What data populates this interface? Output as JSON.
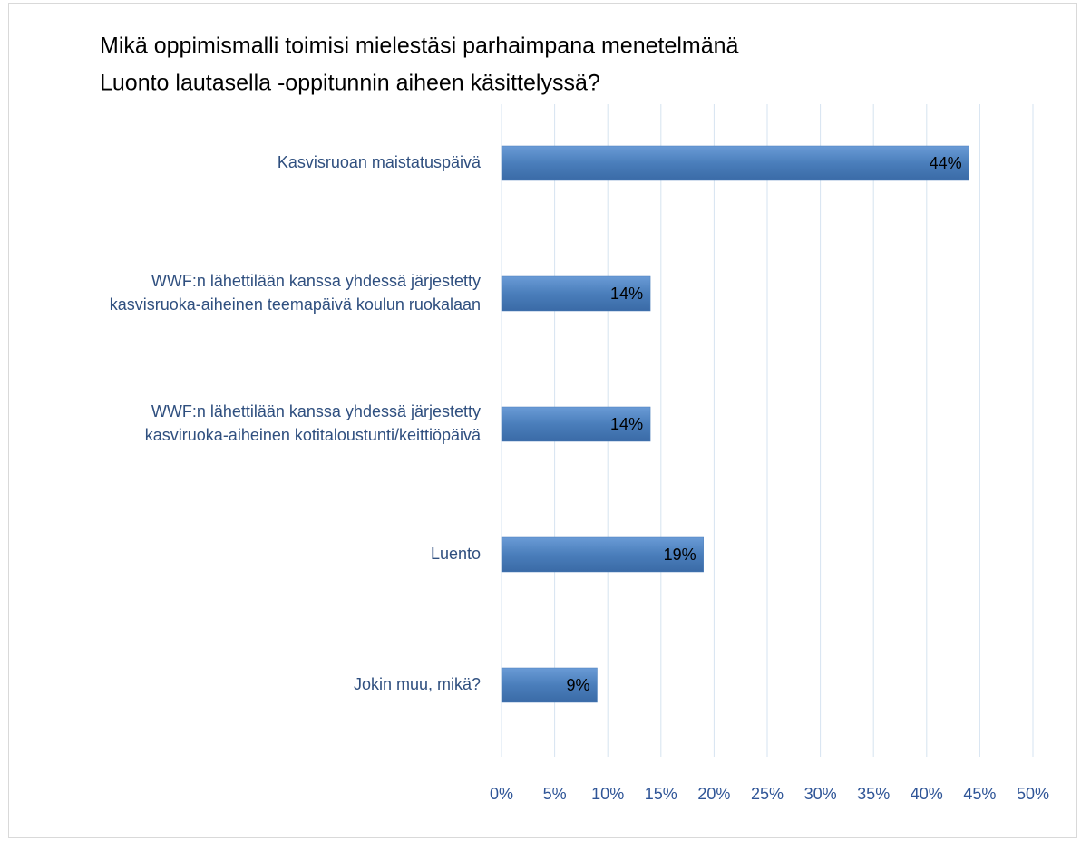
{
  "chart_data": {
    "type": "hbar",
    "title": [
      "Mikä oppimismalli toimisi mielestäsi parhaimpana menetelmänä",
      "Luonto lautasella -oppitunnin aiheen käsittelyssä?"
    ],
    "categories": [
      "Kasvisruoan maistatuspäivä",
      "WWF:n lähettilään kanssa yhdessä järjestetty\nkasvisruoka-aiheinen teemapäivä koulun ruokalaan",
      "WWF:n lähettilään kanssa yhdessä järjestetty\nkasviruoka-aiheinen kotitaloustunti/keittiöpäivä",
      "Luento",
      "Jokin muu, mikä?"
    ],
    "values": [
      44,
      14,
      14,
      19,
      9
    ],
    "value_labels": [
      "44%",
      "14%",
      "14%",
      "19%",
      "9%"
    ],
    "color": "#4a7ebb",
    "xlim": [
      0,
      50
    ],
    "xticks": [
      {
        "value": 0,
        "label": "0%"
      },
      {
        "value": 5,
        "label": "5%"
      },
      {
        "value": 10,
        "label": "10%"
      },
      {
        "value": 15,
        "label": "15%"
      },
      {
        "value": 20,
        "label": "20%"
      },
      {
        "value": 25,
        "label": "25%"
      },
      {
        "value": 30,
        "label": "30%"
      },
      {
        "value": 35,
        "label": "35%"
      },
      {
        "value": 40,
        "label": "40%"
      },
      {
        "value": 45,
        "label": "45%"
      },
      {
        "value": 50,
        "label": "50%"
      }
    ],
    "grid": true
  }
}
